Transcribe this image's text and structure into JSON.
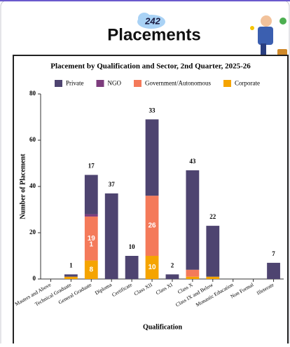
{
  "header": {
    "count": "242",
    "title": "Placements"
  },
  "chart_data": {
    "type": "stacked-bar",
    "title": "Placement by Qualification and Sector, 2nd Quarter, 2025-26",
    "x_label": "Qualification",
    "y_label": "Number of Placement",
    "categories": [
      "Masters and Above",
      "Technical Graduate",
      "General Graduate",
      "Diploma",
      "Certificate",
      "Class XII",
      "Class XI",
      "Class X",
      "Class IX and Below",
      "Monastic Education",
      "Non Formal",
      "Illeterate"
    ],
    "series": [
      {
        "name": "Private",
        "color": "#4e4470",
        "values": [
          null,
          1,
          17,
          37,
          10,
          33,
          2,
          43,
          22,
          null,
          null,
          7
        ]
      },
      {
        "name": "NGO",
        "color": "#7d3c7d",
        "values": [
          null,
          null,
          1,
          null,
          null,
          null,
          null,
          null,
          0,
          null,
          null,
          null
        ]
      },
      {
        "name": "Government/Autonomous",
        "color": "#f47a5a",
        "values": [
          null,
          null,
          19,
          null,
          null,
          26,
          null,
          3,
          0,
          null,
          null,
          null
        ]
      },
      {
        "name": "Corporate",
        "color": "#f5a400",
        "values": [
          null,
          1,
          8,
          null,
          null,
          10,
          null,
          1,
          1,
          null,
          null,
          null
        ]
      }
    ],
    "ylim": [
      0,
      80
    ],
    "yticks": [
      0,
      20,
      40,
      60,
      80
    ],
    "legend": "top"
  }
}
